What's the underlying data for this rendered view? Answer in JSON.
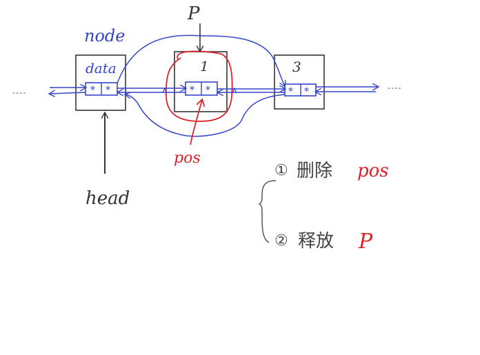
{
  "colors": {
    "ink_black": "#333333",
    "ink_blue": "#3344cc",
    "ink_red": "#e0202a",
    "background": "#ffffff"
  },
  "labels": {
    "node": "node",
    "data": "data",
    "head": "head",
    "p": "P",
    "pos": "pos",
    "node_middle": "1",
    "node_right": "3",
    "ellipsis": "- - - -",
    "field_star": "*",
    "arrow_small": "∧"
  },
  "steps": [
    {
      "marker": "①",
      "text": "删除",
      "highlight": "pos"
    },
    {
      "marker": "②",
      "text": "释放",
      "highlight": "P"
    }
  ]
}
